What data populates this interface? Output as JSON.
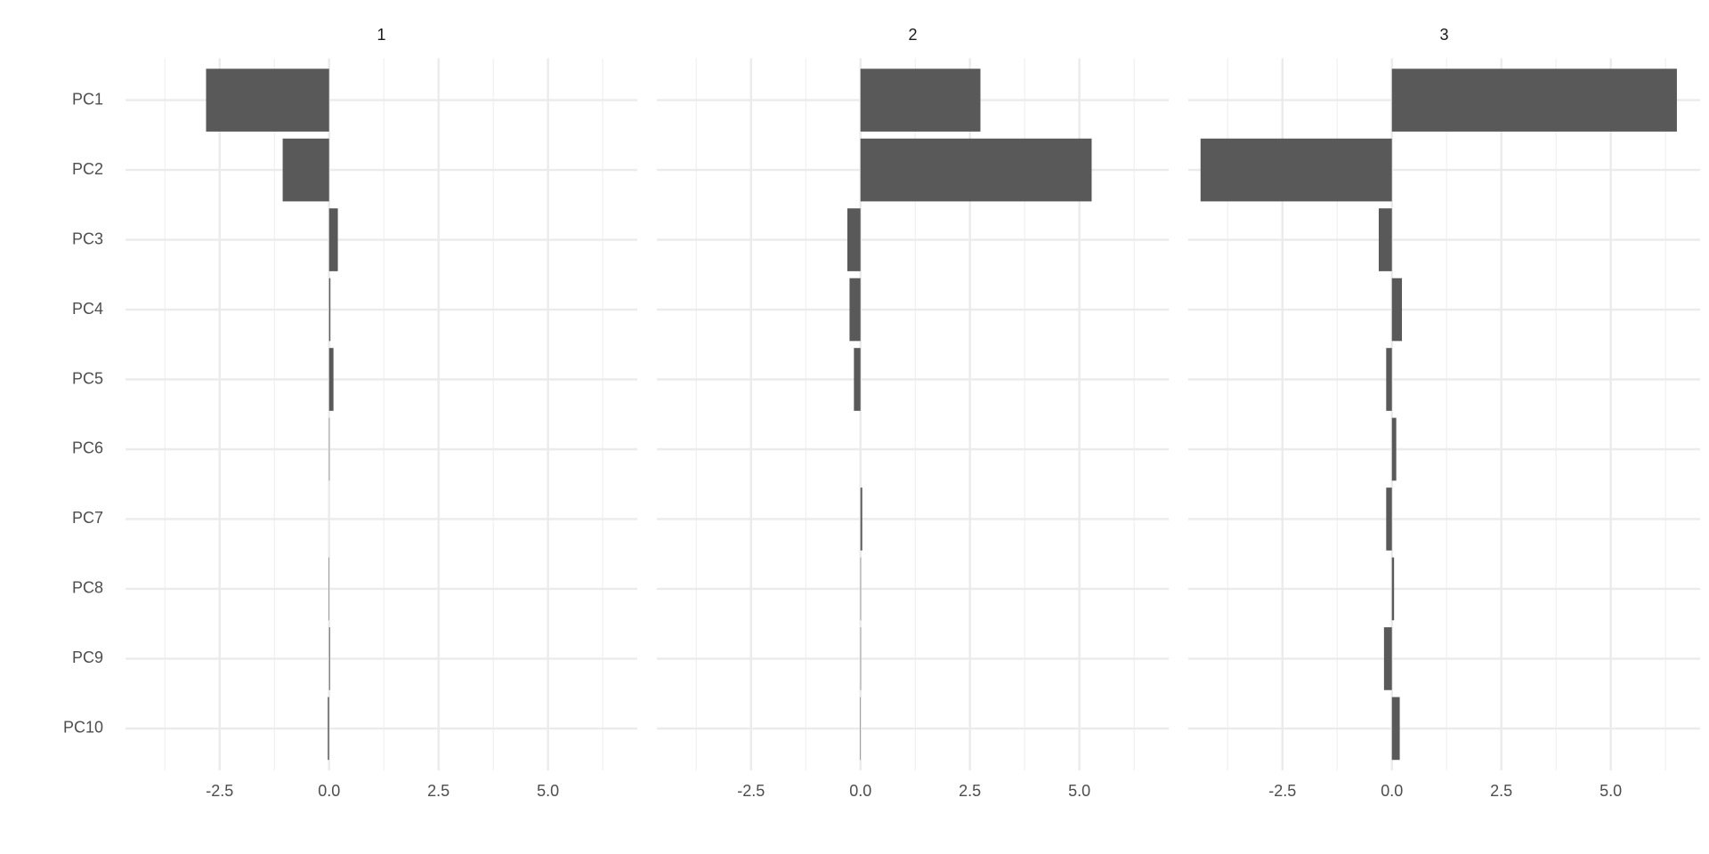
{
  "chart_data": {
    "type": "bar",
    "orientation": "horizontal",
    "categories": [
      "PC1",
      "PC2",
      "PC3",
      "PC4",
      "PC5",
      "PC6",
      "PC7",
      "PC8",
      "PC9",
      "PC10"
    ],
    "series": [
      {
        "name": "1",
        "color": "#595959",
        "values": [
          -2.81,
          -1.06,
          0.2,
          0.03,
          0.1,
          0.01,
          0.0,
          -0.01,
          0.02,
          -0.03
        ]
      },
      {
        "name": "2",
        "color": "#595959",
        "values": [
          2.74,
          5.28,
          -0.3,
          -0.25,
          -0.15,
          0.0,
          0.04,
          0.01,
          0.01,
          -0.01
        ]
      },
      {
        "name": "3",
        "color": "#595959",
        "values": [
          6.51,
          -4.37,
          -0.3,
          0.23,
          -0.13,
          0.1,
          -0.13,
          0.05,
          -0.18,
          0.18
        ]
      }
    ],
    "xlim": [
      -4.65,
      7.04
    ],
    "xticks": [
      {
        "value": -2.5,
        "label": "-2.5"
      },
      {
        "value": 0,
        "label": "0.0"
      },
      {
        "value": 2.5,
        "label": "2.5"
      },
      {
        "value": 5,
        "label": "5.0"
      }
    ],
    "xminor": [
      -3.75,
      -1.25,
      1.25,
      3.75,
      6.25
    ],
    "grid": true
  }
}
